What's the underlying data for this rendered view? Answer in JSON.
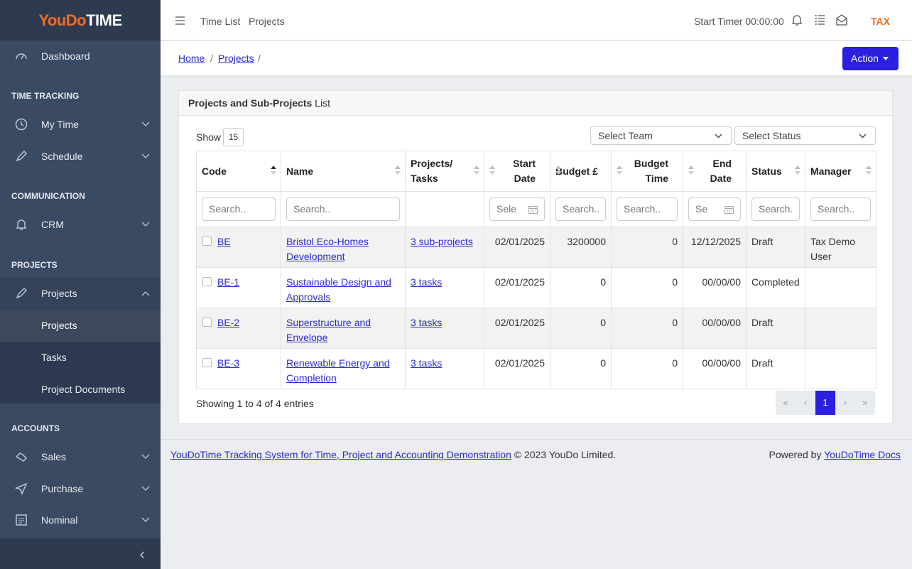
{
  "sidebar": {
    "logo": {
      "brand": "YouDo",
      "suffix": "TIME"
    },
    "dashboard": "Dashboard",
    "sections": [
      {
        "title": "TIME TRACKING",
        "items": [
          "My Time",
          "Schedule"
        ]
      },
      {
        "title": "COMMUNICATION",
        "items": [
          "CRM"
        ]
      },
      {
        "title": "PROJECTS",
        "items": [
          "Projects"
        ]
      },
      {
        "title": "ACCOUNTS",
        "items": [
          "Sales",
          "Purchase",
          "Nominal"
        ]
      }
    ],
    "submenu": [
      "Projects",
      "Tasks",
      "Project Documents"
    ],
    "collapse": "‹"
  },
  "topbar": {
    "links": [
      "Time List",
      "Projects"
    ],
    "timer": "Start Timer 00:00:00",
    "company": "TAX"
  },
  "breadcrumb": [
    "Home",
    "Projects"
  ],
  "breadcrumb_separator": "/",
  "action": "Action",
  "card": {
    "title_bold": "Projects and Sub-Projects",
    "title_rest": " List",
    "show_label": "Show",
    "show_value": "15",
    "team_select": "Select Team",
    "status_select": "Select Status"
  },
  "table": {
    "headers": [
      "Code",
      "Name",
      "Projects/ Tasks",
      "Start Date",
      "Budget £",
      "Budget Time",
      "End Date",
      "Status",
      "Manager"
    ],
    "search": {
      "code": "Search..",
      "name": "Search..",
      "start_date": "Sele",
      "budget": "Search..",
      "budget_time": "Search..",
      "end_date": "Se",
      "status": "Search.",
      "manager": "Search.."
    },
    "rows": [
      {
        "code": "BE",
        "name": "Bristol Eco-Homes Development",
        "link": "3 sub-projects",
        "start": "02/01/2025",
        "budget": 3200000,
        "budget_time": 0,
        "end": "12/12/2025",
        "status": "Draft",
        "manager": "Tax Demo User"
      },
      {
        "code": "BE-1",
        "name": "Sustainable Design and Approvals",
        "link": "3 tasks",
        "start": "02/01/2025",
        "budget": 0,
        "budget_time": 0,
        "end": "00/00/00",
        "status": "Completed"
      },
      {
        "code": "BE-2",
        "name": "Superstructure and Envelope",
        "link": "3 tasks",
        "start": "02/01/2025",
        "budget": 0,
        "budget_time": 0,
        "end": "00/00/00",
        "status": "Draft"
      },
      {
        "code": "BE-3",
        "name": "Renewable Energy and Completion",
        "link": "3 tasks",
        "start": "02/01/2025",
        "budget": 0,
        "budget_time": 0,
        "end": "00/00/00",
        "status": "Draft"
      }
    ]
  },
  "info": "Showing 1 to 4 of 4 entries",
  "pagination": [
    "«",
    "‹",
    "1",
    "›",
    "»"
  ],
  "footer": {
    "link": "YouDoTime Tracking System for Time, Project and Accounting Demonstration",
    "copyright": " © 2023 YouDo Limited.",
    "powered": "Powered by ",
    "docs": "YouDoTime Docs"
  }
}
